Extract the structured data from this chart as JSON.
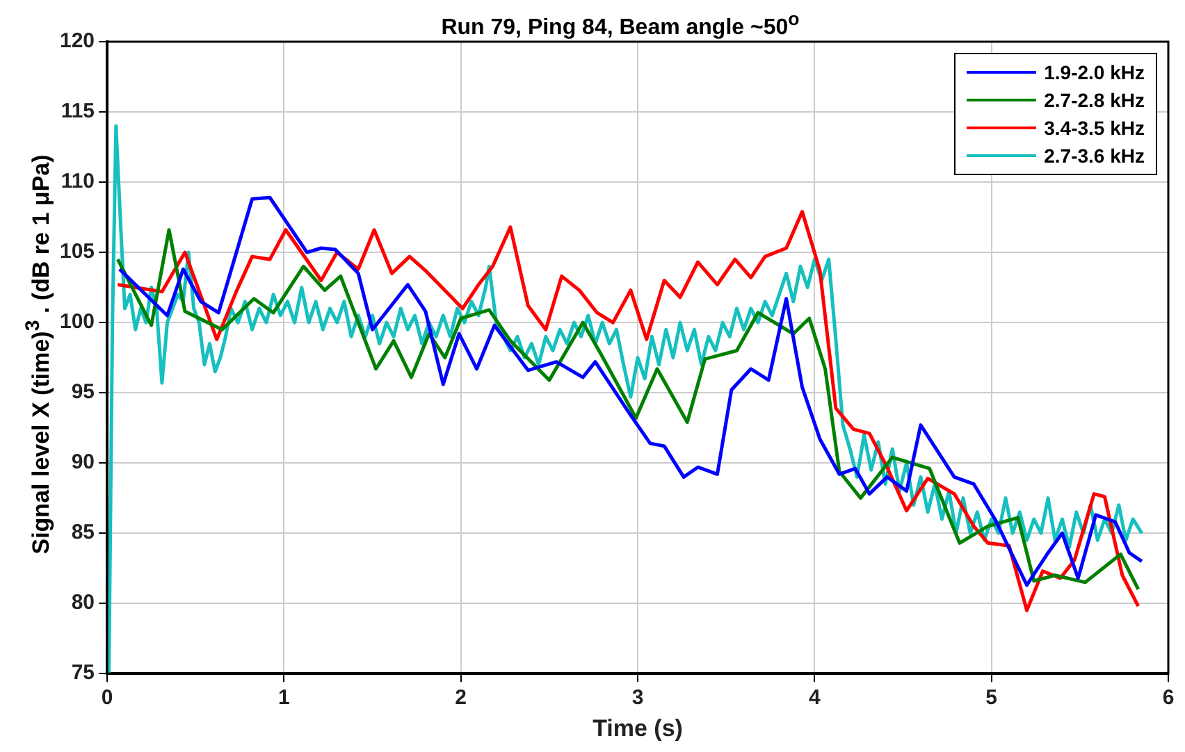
{
  "chart_data": {
    "type": "line",
    "title": "Run 79, Ping 84, Beam angle ~50$^{o}$",
    "xlabel": "Time (s)",
    "ylabel": "Signal level X (time)$^{3}$ . (dB re 1 μPa)",
    "xlim": [
      0,
      6
    ],
    "xticks": [
      0,
      1,
      2,
      3,
      4,
      5,
      6
    ],
    "ylim": [
      75,
      120
    ],
    "yticks": [
      75,
      80,
      85,
      90,
      95,
      100,
      105,
      110,
      115,
      120
    ],
    "grid": true,
    "legend": "top right",
    "marker": "none",
    "line_style": "solid",
    "series": [
      {
        "name": "1.9-2.0 kHz",
        "color": "#0000ff",
        "x": [
          0.07,
          0.34,
          0.43,
          0.53,
          0.63,
          0.82,
          0.92,
          1.13,
          1.21,
          1.29,
          1.42,
          1.5,
          1.7,
          1.8,
          1.9,
          1.99,
          2.09,
          2.19,
          2.38,
          2.54,
          2.69,
          2.76,
          2.96,
          3.07,
          3.15,
          3.26,
          3.34,
          3.45,
          3.53,
          3.64,
          3.74,
          3.84,
          3.93,
          4.03,
          4.14,
          4.23,
          4.31,
          4.41,
          4.52,
          4.6,
          4.79,
          4.9,
          5.02,
          5.2,
          5.32,
          5.4,
          5.49,
          5.59,
          5.7,
          5.78,
          5.85
        ],
        "values": [
          103.8,
          100.5,
          103.8,
          101.5,
          100.7,
          108.8,
          108.9,
          105,
          105.3,
          105.2,
          103.5,
          99.5,
          102.7,
          100.8,
          95.6,
          99.2,
          96.7,
          99.8,
          96.6,
          97.2,
          96.1,
          97.2,
          93.4,
          91.4,
          91.2,
          89,
          89.7,
          89.2,
          95.2,
          96.7,
          95.9,
          101.7,
          95.4,
          91.7,
          89.2,
          89.6,
          87.8,
          89,
          88,
          92.7,
          89,
          88.5,
          86,
          81.3,
          83.6,
          85,
          81.8,
          86.3,
          85.8,
          83.6,
          83
        ]
      },
      {
        "name": "2.7-2.8 kHz",
        "color": "#008000",
        "x": [
          0.06,
          0.25,
          0.35,
          0.44,
          0.65,
          0.83,
          0.94,
          1.11,
          1.23,
          1.32,
          1.52,
          1.62,
          1.72,
          1.82,
          1.91,
          2.0,
          2.16,
          2.28,
          2.5,
          2.69,
          2.79,
          2.99,
          3.11,
          3.28,
          3.38,
          3.56,
          3.68,
          3.88,
          3.97,
          4.06,
          4.14,
          4.26,
          4.44,
          4.65,
          4.82,
          4.98,
          5.15,
          5.24,
          5.36,
          5.53,
          5.73,
          5.83
        ],
        "values": [
          104.5,
          99.8,
          106.6,
          100.8,
          99.5,
          101.7,
          100.7,
          104,
          102.3,
          103.3,
          96.7,
          98.7,
          96.1,
          99.2,
          97.5,
          100.3,
          100.9,
          98.7,
          95.9,
          100,
          97.8,
          93.2,
          96.7,
          92.9,
          97.4,
          98,
          100.7,
          99.2,
          100.3,
          96.7,
          89.4,
          87.5,
          90.4,
          89.6,
          84.3,
          85.5,
          86.1,
          81.6,
          82,
          81.5,
          83.5,
          81
        ]
      },
      {
        "name": "3.4-3.5 kHz",
        "color": "#ff0000",
        "x": [
          0.06,
          0.31,
          0.44,
          0.62,
          0.73,
          0.82,
          0.92,
          1.01,
          1.21,
          1.3,
          1.42,
          1.51,
          1.61,
          1.71,
          1.8,
          2.01,
          2.1,
          2.18,
          2.28,
          2.38,
          2.48,
          2.57,
          2.67,
          2.77,
          2.86,
          2.96,
          3.05,
          3.15,
          3.24,
          3.34,
          3.45,
          3.55,
          3.64,
          3.72,
          3.84,
          3.93,
          4.03,
          4.12,
          4.22,
          4.31,
          4.41,
          4.52,
          4.64,
          4.79,
          4.9,
          4.98,
          5.1,
          5.2,
          5.29,
          5.39,
          5.47,
          5.58,
          5.64,
          5.74,
          5.83
        ],
        "values": [
          102.7,
          102.2,
          105,
          98.8,
          102.2,
          104.7,
          104.5,
          106.6,
          103,
          105,
          103.8,
          106.6,
          103.5,
          104.7,
          103.7,
          101,
          102.7,
          104,
          106.8,
          101.2,
          99.5,
          103.3,
          102.3,
          100.7,
          100,
          102.3,
          98.8,
          103,
          101.8,
          104.3,
          102.7,
          104.5,
          103.2,
          104.7,
          105.3,
          107.9,
          103.7,
          93.9,
          92.4,
          92.1,
          89.7,
          86.6,
          88.9,
          87.8,
          85.5,
          84.3,
          84.1,
          79.5,
          82.3,
          81.8,
          83.1,
          87.8,
          87.6,
          82,
          79.8
        ]
      },
      {
        "name": "2.7-3.6 kHz",
        "color": "#17bfbf",
        "x": [
          0.01,
          0.03,
          0.05,
          0.08,
          0.1,
          0.13,
          0.16,
          0.19,
          0.22,
          0.25,
          0.28,
          0.31,
          0.34,
          0.37,
          0.4,
          0.43,
          0.46,
          0.49,
          0.52,
          0.55,
          0.58,
          0.61,
          0.64,
          0.67,
          0.7,
          0.74,
          0.78,
          0.82,
          0.86,
          0.9,
          0.94,
          0.98,
          1.02,
          1.06,
          1.1,
          1.14,
          1.18,
          1.22,
          1.26,
          1.3,
          1.34,
          1.38,
          1.42,
          1.46,
          1.5,
          1.54,
          1.58,
          1.62,
          1.66,
          1.7,
          1.74,
          1.78,
          1.82,
          1.86,
          1.9,
          1.94,
          1.98,
          2.02,
          2.06,
          2.1,
          2.14,
          2.16,
          2.2,
          2.24,
          2.28,
          2.32,
          2.36,
          2.4,
          2.44,
          2.48,
          2.52,
          2.56,
          2.6,
          2.64,
          2.68,
          2.72,
          2.76,
          2.8,
          2.84,
          2.88,
          2.92,
          2.96,
          3.0,
          3.04,
          3.08,
          3.12,
          3.16,
          3.2,
          3.24,
          3.28,
          3.32,
          3.36,
          3.4,
          3.44,
          3.48,
          3.52,
          3.56,
          3.6,
          3.64,
          3.68,
          3.72,
          3.76,
          3.8,
          3.84,
          3.88,
          3.92,
          3.96,
          4.0,
          4.04,
          4.08,
          4.12,
          4.16,
          4.2,
          4.24,
          4.28,
          4.32,
          4.36,
          4.4,
          4.44,
          4.48,
          4.52,
          4.56,
          4.6,
          4.64,
          4.68,
          4.72,
          4.76,
          4.8,
          4.84,
          4.88,
          4.92,
          4.96,
          5.0,
          5.04,
          5.08,
          5.12,
          5.16,
          5.2,
          5.24,
          5.28,
          5.32,
          5.36,
          5.4,
          5.44,
          5.48,
          5.52,
          5.56,
          5.6,
          5.64,
          5.68,
          5.72,
          5.76,
          5.8,
          5.85
        ],
        "values": [
          75,
          100,
          114,
          106,
          101,
          102,
          99.5,
          101,
          100,
          102.5,
          101,
          95.7,
          100,
          101,
          102,
          101.5,
          105,
          101,
          100,
          97,
          98.5,
          96.5,
          97.5,
          99,
          101,
          100,
          101.5,
          99.5,
          101,
          100,
          102,
          100.5,
          101.5,
          100,
          102.5,
          100,
          101.5,
          99.5,
          101,
          100,
          101.5,
          99,
          100.5,
          99,
          100.5,
          98.5,
          100,
          99,
          101,
          99.5,
          100.5,
          98.5,
          100,
          99,
          100.5,
          99,
          101,
          100,
          101.5,
          100.5,
          102.5,
          104,
          100,
          99,
          98,
          99,
          97.5,
          98.5,
          97,
          99,
          98,
          99.5,
          98.5,
          100,
          99,
          100.5,
          98.5,
          100,
          98.5,
          99.5,
          97,
          94.7,
          97.5,
          96,
          99,
          97,
          99.5,
          97.5,
          100,
          98,
          99.5,
          97,
          99,
          98,
          100,
          99,
          101,
          99.5,
          101,
          100,
          101.5,
          100.5,
          102,
          103.5,
          101.5,
          104,
          102.5,
          104.5,
          103,
          104.5,
          98.8,
          92.7,
          91,
          89,
          92,
          89.5,
          91.5,
          88.5,
          91,
          88,
          90,
          87,
          89,
          86.5,
          88.5,
          86,
          88,
          85,
          87.5,
          85,
          86.5,
          84.5,
          86,
          85,
          87.5,
          85,
          86.5,
          84.5,
          86,
          85,
          87.5,
          84.5,
          86,
          84,
          86.5,
          85,
          87,
          84.5,
          86,
          85,
          87,
          84.5,
          86,
          85
        ]
      }
    ]
  }
}
